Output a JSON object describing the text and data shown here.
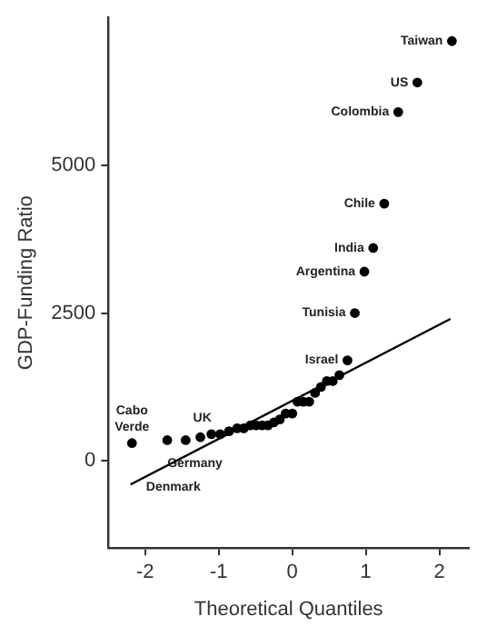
{
  "chart_data": {
    "type": "scatter",
    "xlabel": "Theoretical Quantiles",
    "ylabel": "GDP-Funding Ratio",
    "xlim": [
      -2.5,
      2.4
    ],
    "xticks": [
      -2,
      -1,
      0,
      1,
      2
    ],
    "ylim": [
      -1475,
      7500
    ],
    "yticks": [
      0,
      2500,
      5000
    ],
    "grid": false,
    "legend": false,
    "series": [
      {
        "type": "scatter",
        "color": "#000000",
        "x": [
          -2.18,
          -1.7,
          -1.45,
          -1.25,
          -1.1,
          -0.98,
          -0.86,
          -0.75,
          -0.66,
          -0.57,
          -0.49,
          -0.41,
          -0.33,
          -0.25,
          -0.17,
          -0.09,
          0,
          0.07,
          0.15,
          0.23,
          0.31,
          0.39,
          0.47,
          0.55,
          0.64,
          0.75,
          0.85,
          0.98,
          1.1,
          1.25,
          1.44,
          1.7,
          2.17
        ],
        "values": [
          300,
          350,
          350,
          400,
          450,
          450,
          500,
          550,
          550,
          600,
          600,
          600,
          600,
          650,
          700,
          800,
          800,
          1000,
          1000,
          1000,
          1150,
          1250,
          1350,
          1350,
          1450,
          1700,
          2500,
          3200,
          3600,
          4350,
          5900,
          6400,
          7100
        ]
      },
      {
        "type": "line",
        "color": "#000000",
        "x": [
          -2.2,
          2.15
        ],
        "values": [
          -400,
          2400
        ]
      }
    ],
    "annotations": [
      {
        "text": "Taiwan",
        "x": 2.17,
        "y": 7100
      },
      {
        "text": "US",
        "x": 1.7,
        "y": 6400
      },
      {
        "text": "Colombia",
        "x": 1.44,
        "y": 5900
      },
      {
        "text": "Chile",
        "x": 1.25,
        "y": 4350
      },
      {
        "text": "India",
        "x": 1.1,
        "y": 3600
      },
      {
        "text": "Argentina",
        "x": 0.98,
        "y": 3200
      },
      {
        "text": "Tunisia",
        "x": 0.85,
        "y": 2500
      },
      {
        "text": "Israel",
        "x": 0.75,
        "y": 1700
      },
      {
        "text": "Cabo\nVerde",
        "x": -2.18,
        "y": 300
      },
      {
        "text": "UK",
        "x": -1.1,
        "y": 450
      },
      "Germany",
      "Denmark"
    ]
  }
}
